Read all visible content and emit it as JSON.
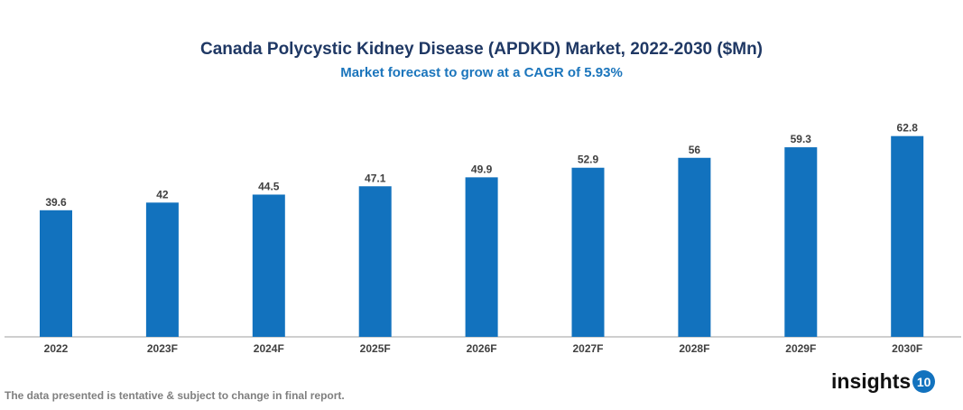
{
  "chart_data": {
    "type": "bar",
    "title": "Canada Polycystic Kidney Disease (APDKD) Market, 2022-2030 ($Mn)",
    "subtitle": "Market forecast to grow at a CAGR of 5.93%",
    "categories": [
      "2022",
      "2023F",
      "2024F",
      "2025F",
      "2026F",
      "2027F",
      "2028F",
      "2029F",
      "2030F"
    ],
    "values": [
      39.6,
      42,
      44.5,
      47.1,
      49.9,
      52.9,
      56,
      59.3,
      62.8
    ],
    "xlabel": "",
    "ylabel": "",
    "ylim": [
      0,
      66
    ],
    "grid": false,
    "data_labels": true,
    "bar_color": "#1272be"
  },
  "footer": {
    "note": "The data presented is tentative & subject to change in final report.",
    "logo_text": "insights",
    "logo_badge": "10"
  }
}
